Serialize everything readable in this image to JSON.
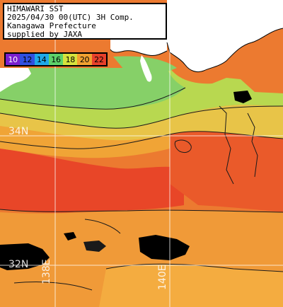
{
  "info": {
    "line1": "HIMAWARI SST",
    "line2": "2025/04/30 00(UTC) 3H Comp.",
    "line3": "Kanagawa Prefecture",
    "line4": "supplied by JAXA"
  },
  "legend": {
    "items": [
      {
        "label": "10",
        "color": "#7b1fcf"
      },
      {
        "label": "12",
        "color": "#3150e0"
      },
      {
        "label": "14",
        "color": "#1fa9e8"
      },
      {
        "label": "16",
        "color": "#5ed16a"
      },
      {
        "label": "18",
        "color": "#d7e23c"
      },
      {
        "label": "20",
        "color": "#f2a030"
      },
      {
        "label": "22",
        "color": "#e8402a"
      }
    ]
  },
  "grid_labels": {
    "lat_34": "34N",
    "lat_32": "32N",
    "lon_138": "138E",
    "lon_140": "140E"
  },
  "colors": {
    "land": "#ffffff",
    "cloud": "#000000",
    "sst_cool": "#7ed26a",
    "sst_mild": "#e7d84a",
    "sst_warm": "#f0a038",
    "sst_hot": "#e8502a",
    "grid": "#ffffff"
  }
}
